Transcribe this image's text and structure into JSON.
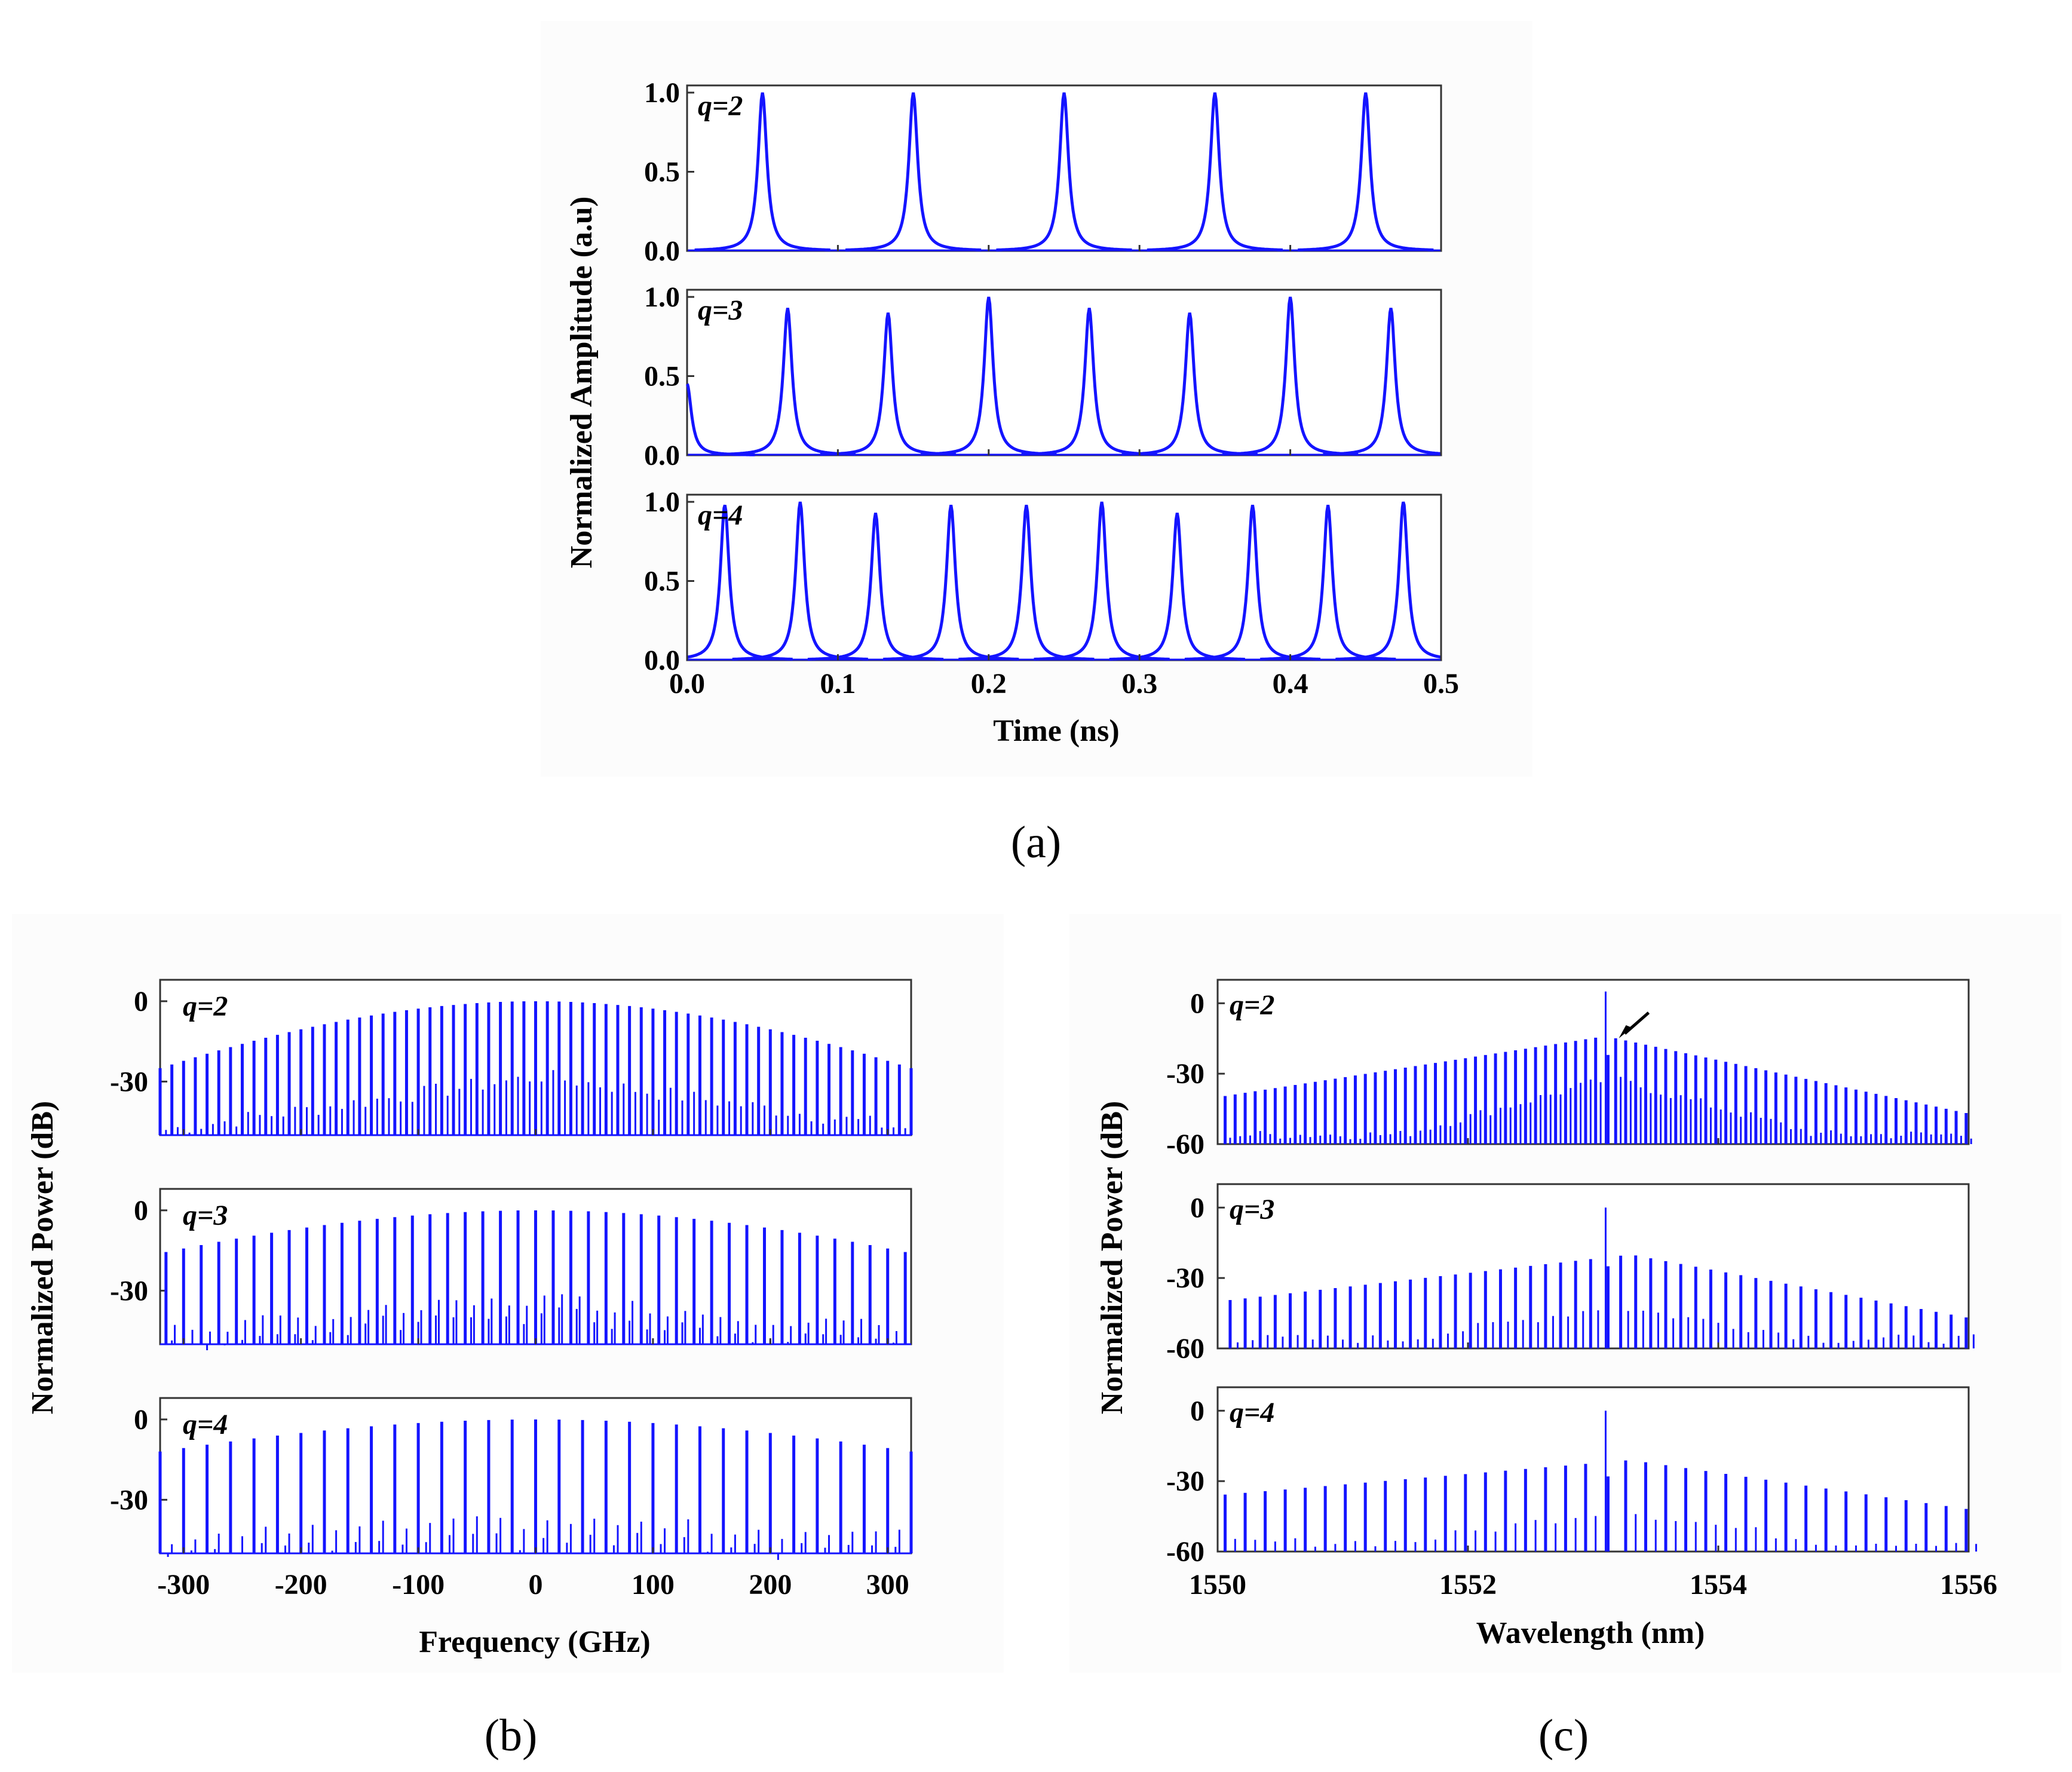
{
  "chart_data": [
    {
      "id": "a",
      "type": "line",
      "caption": "(a)",
      "xlabel": "Time (ns)",
      "ylabel": "Normalized Amplitude  (a.u)",
      "xlim": [
        0.0,
        0.5
      ],
      "xticks": [
        "0.0",
        "0.1",
        "0.2",
        "0.3",
        "0.4",
        "0.5"
      ],
      "ylim": [
        0.0,
        1.0
      ],
      "yticks": [
        "0.0",
        "0.5",
        "1.0"
      ],
      "panels": [
        {
          "q": "q=2",
          "pulse_times_ns": [
            0.05,
            0.15,
            0.25,
            0.35,
            0.45
          ],
          "peak_amplitudes": [
            1.0,
            1.0,
            1.0,
            1.0,
            1.0
          ]
        },
        {
          "q": "q=3",
          "pulse_times_ns": [
            0.0,
            0.0667,
            0.1333,
            0.2,
            0.2667,
            0.3333,
            0.4,
            0.4667
          ],
          "peak_amplitudes": [
            0.45,
            0.93,
            0.9,
            1.0,
            0.93,
            0.9,
            1.0,
            0.93
          ]
        },
        {
          "q": "q=4",
          "pulse_times_ns": [
            0.025,
            0.075,
            0.125,
            0.175,
            0.225,
            0.275,
            0.325,
            0.375,
            0.425,
            0.475
          ],
          "peak_amplitudes": [
            0.98,
            1.0,
            0.93,
            0.98,
            0.98,
            1.0,
            0.93,
            0.98,
            0.98,
            1.0
          ]
        }
      ]
    },
    {
      "id": "b",
      "type": "bar",
      "caption": "(b)",
      "xlabel": "Frequency (GHz)",
      "ylabel": "Normalized Power (dB)",
      "xlim": [
        -320,
        320
      ],
      "xticks": [
        "-300",
        "-200",
        "-100",
        "0",
        "100",
        "200",
        "300"
      ],
      "ylim": [
        -50,
        8
      ],
      "yticks": [
        "0",
        "-30"
      ],
      "panels": [
        {
          "q": "q=2",
          "line_spacing_ghz": 10,
          "peak_db_at_center": 0,
          "peak_db_at_edge": -25,
          "sub_line_db_center": -28,
          "sub_line_db_edge": -48,
          "floor_db": -50
        },
        {
          "q": "q=3",
          "line_spacing_ghz": 15,
          "peak_db_at_center": 0,
          "peak_db_at_edge": -16,
          "sub_line_db_center": -33,
          "sub_line_db_edge": -45,
          "floor_db": -50
        },
        {
          "q": "q=4",
          "line_spacing_ghz": 20,
          "peak_db_at_center": 0,
          "peak_db_at_edge": -12,
          "sub_line_db_center": -38,
          "sub_line_db_edge": -44,
          "floor_db": -50
        }
      ]
    },
    {
      "id": "c",
      "type": "bar",
      "caption": "(c)",
      "xlabel": "Wavelength (nm)",
      "ylabel": "Normalized Power (dB)",
      "xlim": [
        1550,
        1556
      ],
      "xticks": [
        "1550",
        "1552",
        "1554",
        "1556"
      ],
      "ylim": [
        -60,
        10
      ],
      "yticks": [
        "0",
        "-30",
        "-60"
      ],
      "annotation": "arrow pointing to sideband next to residual carrier (q=2)",
      "panels": [
        {
          "q": "q=2",
          "line_spacing_nm": 0.08,
          "carrier_nm": 1553.1,
          "carrier_db": 5,
          "envelope_center_nm": 1553.1,
          "peak_db_at_center": -14,
          "peak_db_left_edge": -40,
          "peak_db_right_edge": -47
        },
        {
          "q": "q=3",
          "line_spacing_nm": 0.12,
          "carrier_nm": 1553.1,
          "carrier_db": 0,
          "envelope_center_nm": 1553.3,
          "peak_db_at_center": -20,
          "peak_db_left_edge": -40,
          "peak_db_right_edge": -47
        },
        {
          "q": "q=4",
          "line_spacing_nm": 0.16,
          "carrier_nm": 1553.1,
          "carrier_db": 0,
          "envelope_center_nm": 1553.3,
          "peak_db_at_center": -21,
          "peak_db_left_edge": -36,
          "peak_db_right_edge": -42
        }
      ]
    }
  ]
}
